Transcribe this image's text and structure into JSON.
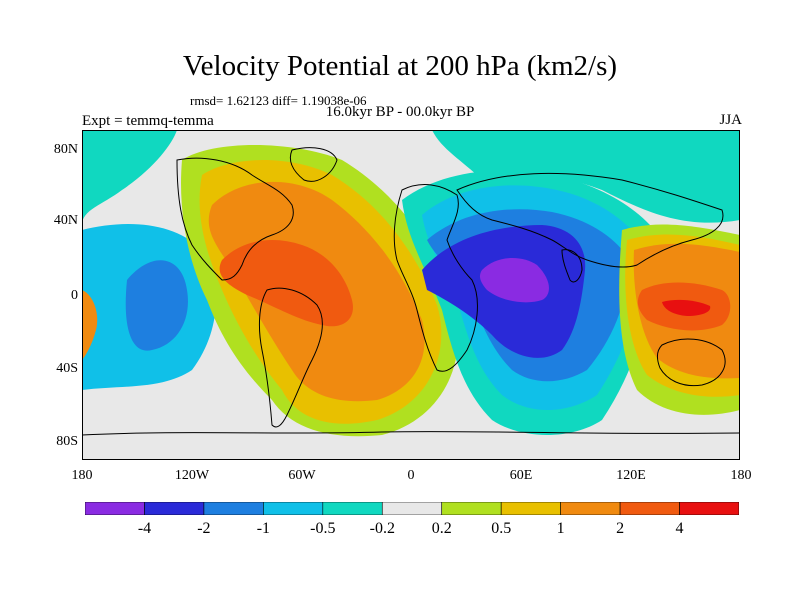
{
  "title": "Velocity Potential at 200 hPa (km2/s)",
  "stats": "rmsd= 1.62123 diff= 1.19038e-06",
  "period": "16.0kyr BP - 00.0kyr BP",
  "experiment": "Expt = temmq-temma",
  "season": "JJA",
  "lat_labels": [
    "80N",
    "40N",
    "0",
    "40S",
    "80S"
  ],
  "lon_labels": [
    "180",
    "120W",
    "60W",
    "0",
    "60E",
    "120E",
    "180"
  ],
  "colorbar": {
    "colors": [
      "#8a2be2",
      "#2a2ad8",
      "#1e7fe0",
      "#10c0e8",
      "#10d8c0",
      "#e8e8e8",
      "#b0e020",
      "#e8c000",
      "#f08a10",
      "#f05a10",
      "#e81010"
    ],
    "labels": [
      "-4",
      "-2",
      "-1",
      "-0.5",
      "-0.2",
      "0.2",
      "0.5",
      "1",
      "2",
      "4"
    ]
  },
  "map": {
    "background": "#e8e8e8",
    "regions": [
      {
        "name": "arctic-cyan-band",
        "level": -0.2
      },
      {
        "name": "atlantic-positive-anomaly",
        "level": 1
      },
      {
        "name": "atlantic-core",
        "level": 2
      },
      {
        "name": "asia-negative-anomaly",
        "level": -1
      },
      {
        "name": "africa-core",
        "level": -4
      },
      {
        "name": "pacific-west-positive",
        "level": 2
      },
      {
        "name": "maritime-continent-core",
        "level": 4
      },
      {
        "name": "east-pacific-negative",
        "level": -1
      }
    ]
  }
}
